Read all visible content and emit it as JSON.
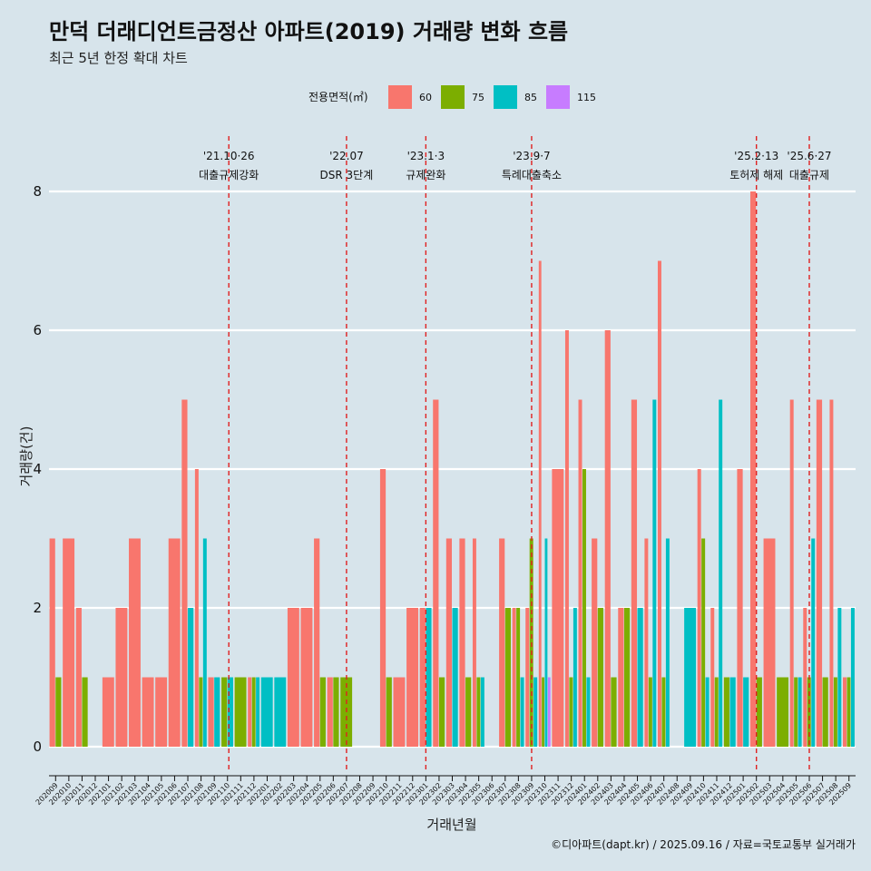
{
  "title": "만덕 더래디언트금정산 아파트(2019) 거래량 변화 흐름",
  "subtitle": "최근 5년 한정 확대 차트",
  "caption": "©디아파트(dapt.kr) / 2025.09.16 / 자료=국토교통부 실거래가",
  "chart_data": {
    "type": "bar",
    "title": "만덕 더래디언트금정산 아파트(2019) 거래량 변화 흐름",
    "xlabel": "거래년월",
    "ylabel": "거래량(건)",
    "ylim": [
      0,
      8.6
    ],
    "yticks": [
      0,
      2,
      4,
      6,
      8
    ],
    "legend": {
      "title": "전용면적(㎡)",
      "position": "top",
      "items": [
        {
          "name": "60",
          "color": "#f8766d"
        },
        {
          "name": "75",
          "color": "#7cae00"
        },
        {
          "name": "85",
          "color": "#00bfc4"
        },
        {
          "name": "115",
          "color": "#c77cff"
        }
      ]
    },
    "categories": [
      "202009",
      "202010",
      "202011",
      "202012",
      "202101",
      "202102",
      "202103",
      "202104",
      "202105",
      "202106",
      "202107",
      "202108",
      "202109",
      "202110",
      "202111",
      "202112",
      "202201",
      "202202",
      "202203",
      "202204",
      "202205",
      "202206",
      "202207",
      "202208",
      "202209",
      "202210",
      "202211",
      "202212",
      "202301",
      "202302",
      "202303",
      "202304",
      "202305",
      "202306",
      "202307",
      "202308",
      "202309",
      "202310",
      "202311",
      "202312",
      "202401",
      "202402",
      "202403",
      "202404",
      "202405",
      "202406",
      "202407",
      "202408",
      "202409",
      "202410",
      "202411",
      "202412",
      "202501",
      "202502",
      "202503",
      "202504",
      "202505",
      "202506",
      "202507",
      "202508",
      "202509"
    ],
    "series": [
      {
        "name": "60",
        "values": [
          3,
          3,
          2,
          0,
          1,
          2,
          3,
          1,
          1,
          3,
          5,
          4,
          1,
          0,
          0,
          1,
          0,
          0,
          2,
          2,
          3,
          1,
          0,
          0,
          0,
          4,
          1,
          2,
          2,
          5,
          3,
          3,
          3,
          0,
          3,
          2,
          2,
          7,
          4,
          6,
          5,
          3,
          6,
          2,
          5,
          3,
          7,
          0,
          0,
          4,
          2,
          0,
          4,
          8,
          3,
          0,
          5,
          2,
          5,
          5,
          1
        ]
      },
      {
        "name": "75",
        "values": [
          1,
          0,
          1,
          0,
          0,
          0,
          0,
          0,
          0,
          0,
          0,
          1,
          0,
          1,
          1,
          1,
          0,
          0,
          0,
          0,
          1,
          1,
          1,
          0,
          0,
          1,
          0,
          0,
          0,
          1,
          0,
          1,
          1,
          0,
          2,
          2,
          3,
          1,
          0,
          1,
          4,
          2,
          1,
          2,
          0,
          1,
          1,
          0,
          0,
          3,
          1,
          1,
          0,
          1,
          0,
          1,
          1,
          1,
          1,
          1,
          1
        ]
      },
      {
        "name": "85",
        "values": [
          0,
          0,
          0,
          0,
          0,
          0,
          0,
          0,
          0,
          0,
          2,
          3,
          1,
          1,
          0,
          1,
          1,
          1,
          0,
          0,
          0,
          0,
          0,
          0,
          0,
          0,
          0,
          0,
          2,
          0,
          2,
          0,
          1,
          0,
          0,
          1,
          1,
          3,
          0,
          2,
          1,
          0,
          0,
          0,
          2,
          5,
          3,
          0,
          2,
          1,
          5,
          1,
          1,
          0,
          0,
          0,
          1,
          3,
          0,
          2,
          2
        ]
      },
      {
        "name": "115",
        "values": [
          0,
          0,
          0,
          0,
          0,
          0,
          0,
          0,
          0,
          0,
          0,
          0,
          0,
          0,
          0,
          0,
          0,
          0,
          0,
          0,
          0,
          0,
          0,
          0,
          0,
          0,
          0,
          0,
          0,
          0,
          0,
          0,
          0,
          0,
          0,
          0,
          0,
          1,
          0,
          0,
          0,
          0,
          0,
          0,
          0,
          0,
          0,
          0,
          0,
          0,
          0,
          0,
          0,
          0,
          0,
          0,
          0,
          0,
          0,
          0,
          0
        ]
      }
    ],
    "annotations": [
      {
        "date": "'21.10·26",
        "label": "대출규제강화",
        "x": 13.6
      },
      {
        "date": "'22.07",
        "label": "DSR 3단계",
        "x": 22.5
      },
      {
        "date": "'23.1·3",
        "label": "규제완화",
        "x": 28.5
      },
      {
        "date": "'23.9·7",
        "label": "특례대출축소",
        "x": 36.5
      },
      {
        "date": "'25.2·13",
        "label": "토허제 해제",
        "x": 53.5
      },
      {
        "date": "'25.6·27",
        "label": "대출규제",
        "x": 57.5
      }
    ]
  }
}
